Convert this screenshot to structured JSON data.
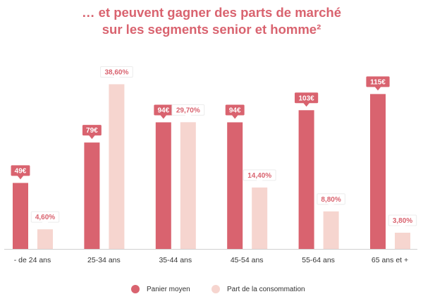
{
  "title": {
    "line1": "… et peuvent gagner des parts de marché",
    "line2": "sur les segments senior et homme²"
  },
  "colors": {
    "title": "#d9636f",
    "panier": "#d9636f",
    "part": "#f6d5cf",
    "part_label": "#d9636f"
  },
  "chart_data": {
    "type": "bar",
    "categories": [
      "- de 24 ans",
      "25-34 ans",
      "35-44 ans",
      "45-54 ans",
      "55-64 ans",
      "65 ans et +"
    ],
    "series": [
      {
        "name": "Panier moyen",
        "values": [
          49,
          79,
          94,
          94,
          103,
          115
        ],
        "labels": [
          "49€",
          "79€",
          "94€",
          "94€",
          "103€",
          "115€"
        ]
      },
      {
        "name": "Part de la consommation",
        "values": [
          4.6,
          38.6,
          29.7,
          14.4,
          8.8,
          3.8
        ],
        "labels": [
          "4,60%",
          "38,60%",
          "29,70%",
          "14,40%",
          "8,80%",
          "3,80%"
        ]
      }
    ],
    "legend_position": "bottom",
    "grid": false
  }
}
